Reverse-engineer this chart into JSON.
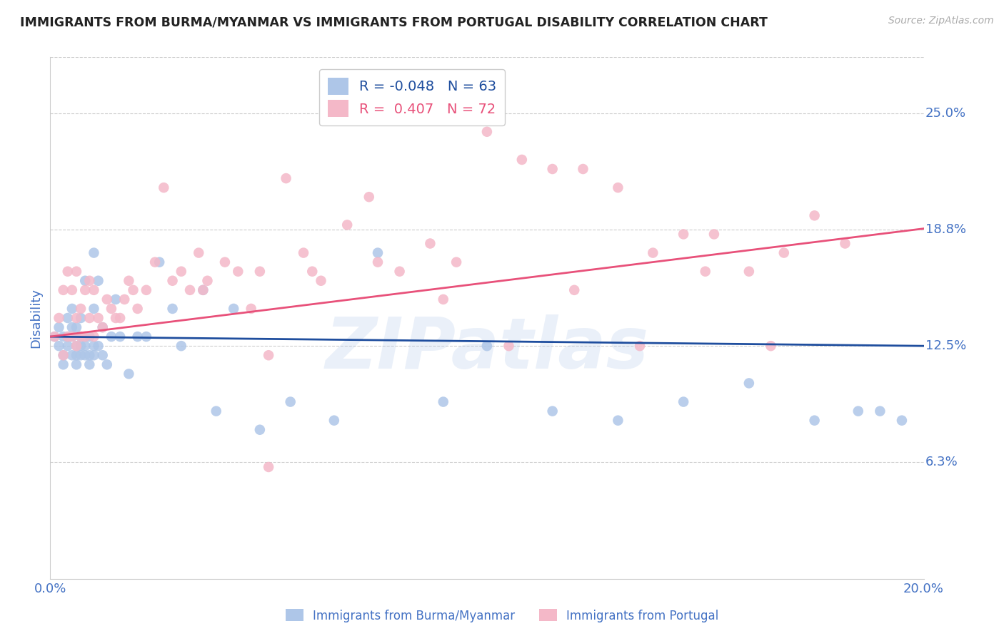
{
  "title": "IMMIGRANTS FROM BURMA/MYANMAR VS IMMIGRANTS FROM PORTUGAL DISABILITY CORRELATION CHART",
  "source": "Source: ZipAtlas.com",
  "ylabel": "Disability",
  "xlim": [
    0.0,
    0.2
  ],
  "ylim": [
    0.0,
    0.28
  ],
  "yticks": [
    0.0625,
    0.125,
    0.1875,
    0.25
  ],
  "ytick_labels": [
    "6.3%",
    "12.5%",
    "18.8%",
    "25.0%"
  ],
  "xticks": [
    0.0,
    0.05,
    0.1,
    0.15,
    0.2
  ],
  "xtick_labels": [
    "0.0%",
    "",
    "",
    "",
    "20.0%"
  ],
  "grid_color": "#cccccc",
  "background_color": "#ffffff",
  "series1_label": "Immigrants from Burma/Myanmar",
  "series2_label": "Immigrants from Portugal",
  "series1_color": "#aec6e8",
  "series2_color": "#f4b8c8",
  "series1_line_color": "#1f4e9e",
  "series2_line_color": "#e8517a",
  "series1_R": "-0.048",
  "series1_N": "63",
  "series2_R": "0.407",
  "series2_N": "72",
  "label_color": "#4472c4",
  "watermark": "ZIPatlas",
  "title_color": "#222222",
  "source_color": "#aaaaaa",
  "series1_line_y0": 0.13,
  "series1_line_y1": 0.125,
  "series2_line_y0": 0.13,
  "series2_line_y1": 0.188,
  "series1_x": [
    0.001,
    0.002,
    0.002,
    0.003,
    0.003,
    0.003,
    0.004,
    0.004,
    0.004,
    0.005,
    0.005,
    0.005,
    0.005,
    0.006,
    0.006,
    0.006,
    0.006,
    0.007,
    0.007,
    0.007,
    0.007,
    0.008,
    0.008,
    0.008,
    0.008,
    0.009,
    0.009,
    0.009,
    0.01,
    0.01,
    0.01,
    0.011,
    0.011,
    0.012,
    0.012,
    0.013,
    0.014,
    0.015,
    0.016,
    0.018,
    0.02,
    0.022,
    0.025,
    0.028,
    0.03,
    0.035,
    0.038,
    0.042,
    0.048,
    0.055,
    0.065,
    0.075,
    0.09,
    0.1,
    0.115,
    0.13,
    0.145,
    0.16,
    0.175,
    0.185,
    0.19,
    0.195,
    0.01
  ],
  "series1_y": [
    0.13,
    0.125,
    0.135,
    0.115,
    0.12,
    0.13,
    0.125,
    0.13,
    0.14,
    0.12,
    0.13,
    0.135,
    0.145,
    0.115,
    0.12,
    0.125,
    0.135,
    0.12,
    0.125,
    0.13,
    0.14,
    0.12,
    0.125,
    0.13,
    0.16,
    0.115,
    0.12,
    0.13,
    0.12,
    0.125,
    0.145,
    0.125,
    0.16,
    0.12,
    0.135,
    0.115,
    0.13,
    0.15,
    0.13,
    0.11,
    0.13,
    0.13,
    0.17,
    0.145,
    0.125,
    0.155,
    0.09,
    0.145,
    0.08,
    0.095,
    0.085,
    0.175,
    0.095,
    0.125,
    0.09,
    0.085,
    0.095,
    0.105,
    0.085,
    0.09,
    0.09,
    0.085,
    0.175
  ],
  "series2_x": [
    0.001,
    0.002,
    0.003,
    0.003,
    0.004,
    0.004,
    0.005,
    0.005,
    0.006,
    0.006,
    0.006,
    0.007,
    0.007,
    0.008,
    0.008,
    0.009,
    0.009,
    0.01,
    0.01,
    0.011,
    0.012,
    0.013,
    0.014,
    0.015,
    0.016,
    0.017,
    0.018,
    0.019,
    0.02,
    0.022,
    0.024,
    0.026,
    0.028,
    0.03,
    0.032,
    0.034,
    0.036,
    0.04,
    0.043,
    0.046,
    0.05,
    0.054,
    0.058,
    0.062,
    0.068,
    0.073,
    0.08,
    0.087,
    0.093,
    0.1,
    0.108,
    0.115,
    0.122,
    0.13,
    0.138,
    0.145,
    0.152,
    0.16,
    0.168,
    0.175,
    0.182,
    0.035,
    0.048,
    0.06,
    0.075,
    0.09,
    0.105,
    0.12,
    0.135,
    0.15,
    0.165,
    0.05
  ],
  "series2_y": [
    0.13,
    0.14,
    0.12,
    0.155,
    0.13,
    0.165,
    0.13,
    0.155,
    0.125,
    0.14,
    0.165,
    0.13,
    0.145,
    0.13,
    0.155,
    0.14,
    0.16,
    0.13,
    0.155,
    0.14,
    0.135,
    0.15,
    0.145,
    0.14,
    0.14,
    0.15,
    0.16,
    0.155,
    0.145,
    0.155,
    0.17,
    0.21,
    0.16,
    0.165,
    0.155,
    0.175,
    0.16,
    0.17,
    0.165,
    0.145,
    0.12,
    0.215,
    0.175,
    0.16,
    0.19,
    0.205,
    0.165,
    0.18,
    0.17,
    0.24,
    0.225,
    0.22,
    0.22,
    0.21,
    0.175,
    0.185,
    0.185,
    0.165,
    0.175,
    0.195,
    0.18,
    0.155,
    0.165,
    0.165,
    0.17,
    0.15,
    0.125,
    0.155,
    0.125,
    0.165,
    0.125,
    0.06
  ]
}
